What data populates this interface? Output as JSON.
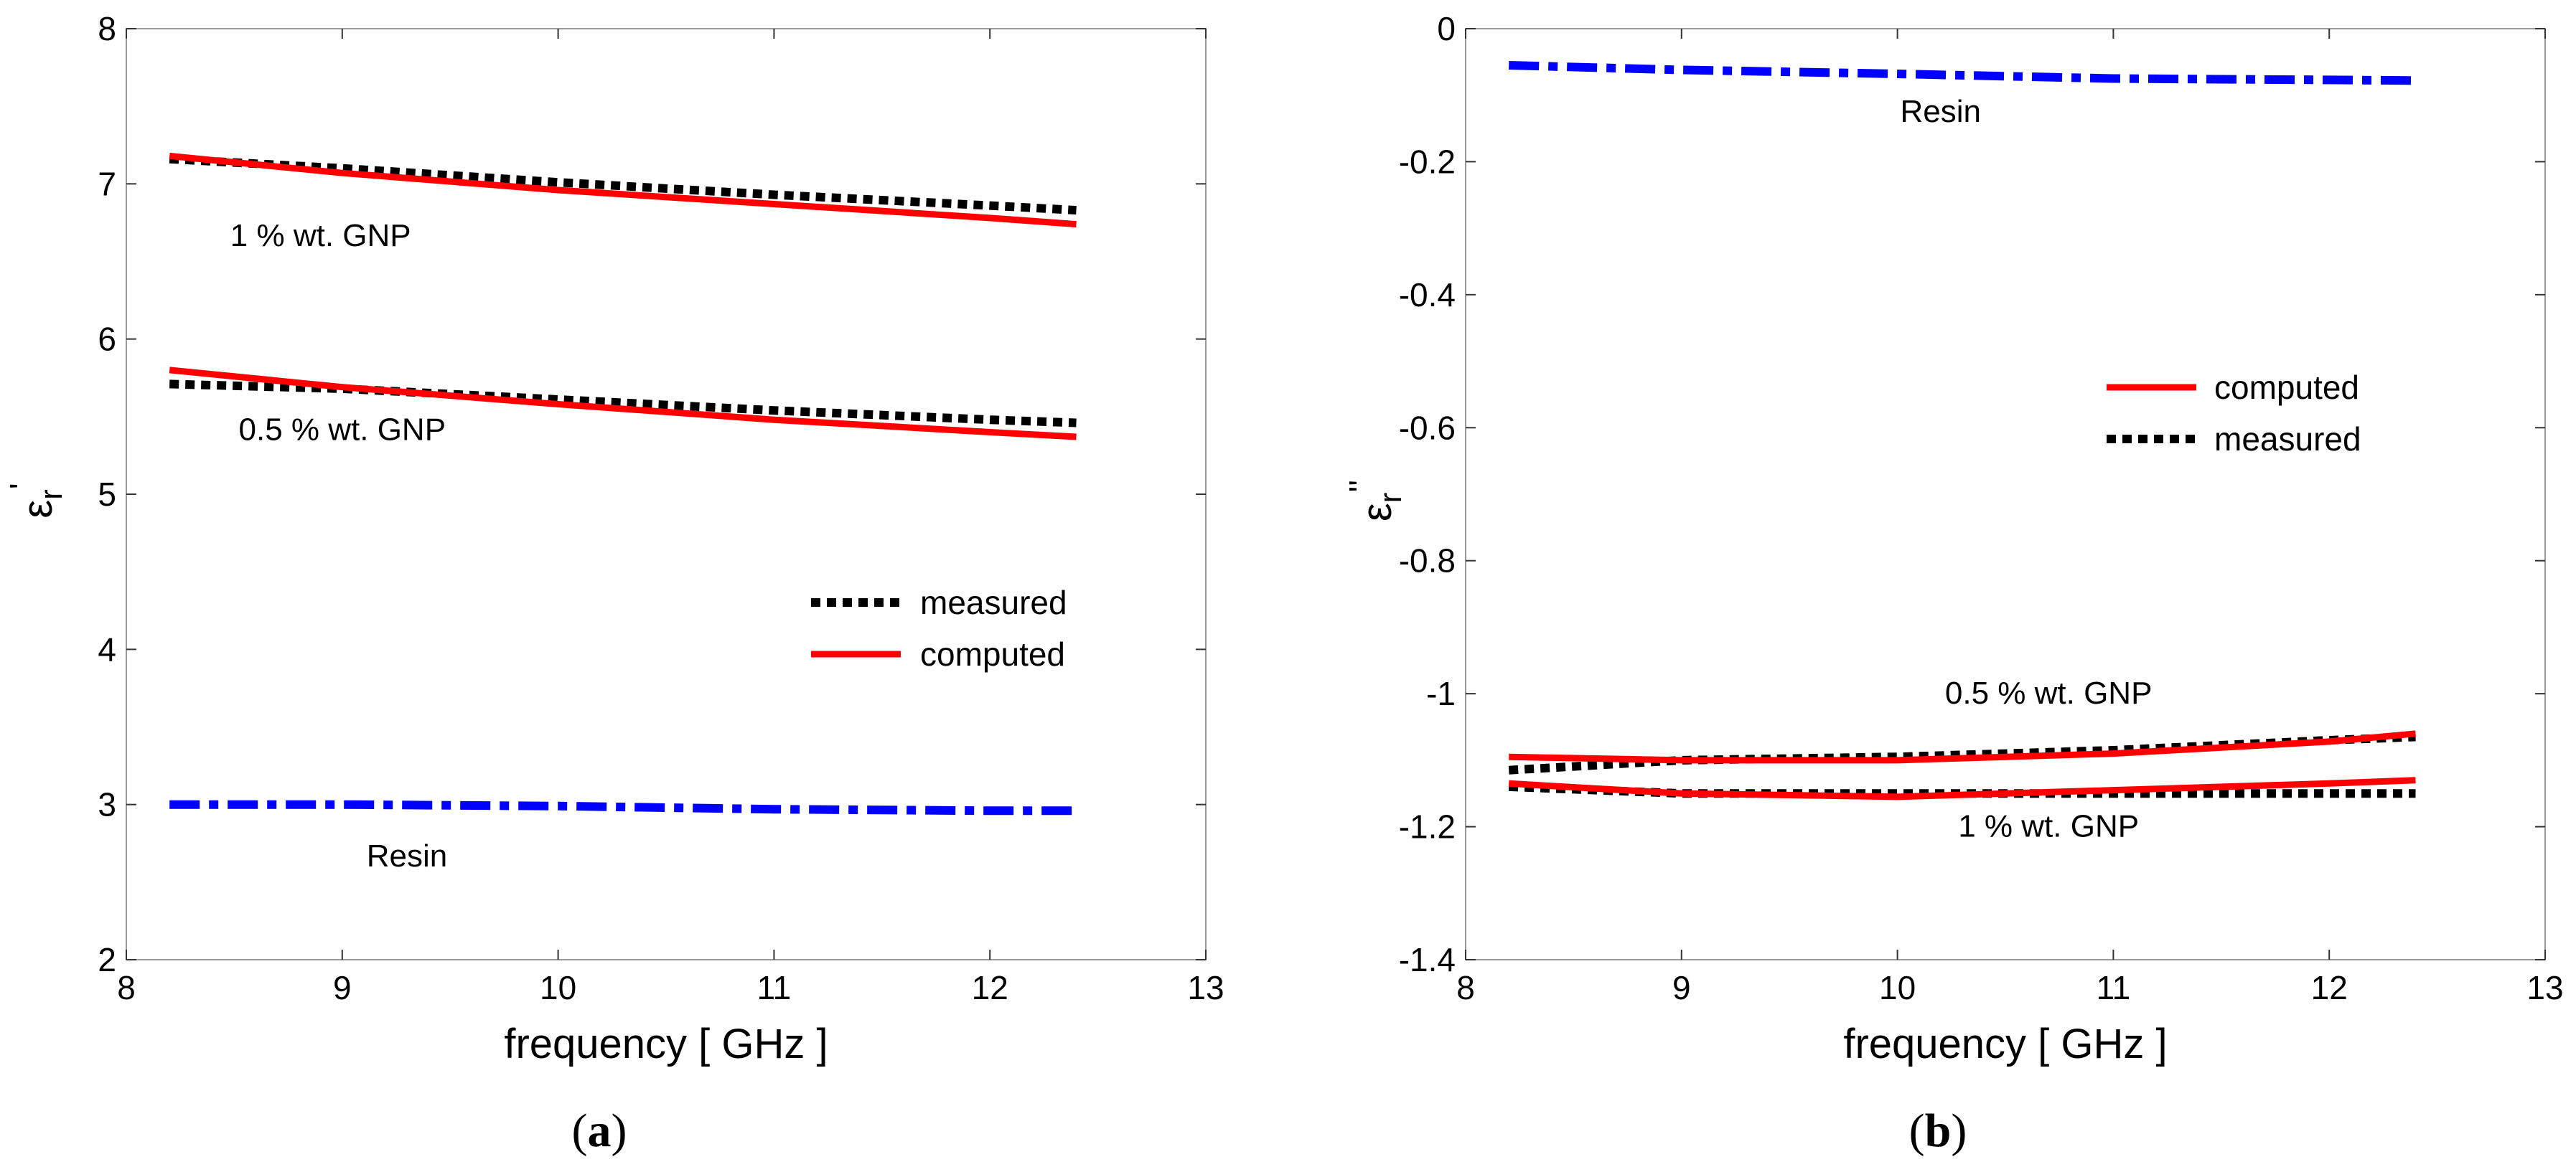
{
  "chart_data": [
    {
      "type": "line",
      "panel": "a",
      "caption": "a",
      "xlabel": "frequency [ GHz ]",
      "ylabel": "ε",
      "ylabel_sub": "r",
      "ylabel_sup": "'",
      "xlim": [
        8,
        13
      ],
      "ylim": [
        2,
        8
      ],
      "xticks": [
        8,
        9,
        10,
        11,
        12,
        13
      ],
      "yticks": [
        2,
        3,
        4,
        5,
        6,
        7,
        8
      ],
      "legend": {
        "placement": "right-middle",
        "entries": [
          "measured",
          "computed"
        ]
      },
      "series": [
        {
          "name": "1 % wt. GNP measured",
          "style": "measured",
          "x": [
            8.2,
            9,
            10,
            11,
            12,
            12.4
          ],
          "y": [
            7.16,
            7.1,
            7.01,
            6.93,
            6.86,
            6.83
          ]
        },
        {
          "name": "1 % wt. GNP computed",
          "style": "computed",
          "x": [
            8.2,
            9,
            10,
            11,
            12,
            12.4
          ],
          "y": [
            7.18,
            7.07,
            6.96,
            6.87,
            6.78,
            6.74
          ]
        },
        {
          "name": "0.5 % wt. GNP measured",
          "style": "measured",
          "x": [
            8.2,
            9,
            10,
            11,
            12,
            12.4
          ],
          "y": [
            5.71,
            5.68,
            5.61,
            5.54,
            5.48,
            5.46
          ]
        },
        {
          "name": "0.5 % wt. GNP computed",
          "style": "computed",
          "x": [
            8.2,
            9,
            10,
            11,
            12,
            12.4
          ],
          "y": [
            5.8,
            5.69,
            5.58,
            5.48,
            5.4,
            5.37
          ]
        },
        {
          "name": "Resin",
          "style": "resin",
          "x": [
            8.2,
            9,
            10,
            11,
            12,
            12.4
          ],
          "y": [
            3.0,
            3.0,
            2.99,
            2.97,
            2.96,
            2.96
          ]
        }
      ],
      "annotations": [
        {
          "text": "1 % wt. GNP",
          "x": 8.9,
          "y": 6.6
        },
        {
          "text": "0.5 % wt. GNP",
          "x": 9.0,
          "y": 5.35
        },
        {
          "text": "Resin",
          "x": 9.3,
          "y": 2.6
        }
      ]
    },
    {
      "type": "line",
      "panel": "b",
      "caption": "b",
      "xlabel": "frequency [ GHz ]",
      "ylabel": "ε",
      "ylabel_sub": "r",
      "ylabel_sup": "''",
      "xlim": [
        8,
        13
      ],
      "ylim": [
        -1.4,
        0
      ],
      "xticks": [
        8,
        9,
        10,
        11,
        12,
        13
      ],
      "yticks": [
        -1.4,
        -1.2,
        -1,
        -0.8,
        -0.6,
        -0.4,
        -0.2,
        0
      ],
      "yticklabels": [
        "-1.4",
        "-1.2",
        "-1",
        "-0.8",
        "-0.6",
        "-0.4",
        "-0.2",
        "0"
      ],
      "legend": {
        "placement": "right-middle",
        "entries": [
          "computed",
          "measured"
        ]
      },
      "series": [
        {
          "name": "Resin",
          "style": "resin",
          "x": [
            8.2,
            9,
            10,
            11,
            12,
            12.4
          ],
          "y": [
            -0.055,
            -0.062,
            -0.068,
            -0.075,
            -0.077,
            -0.078
          ]
        },
        {
          "name": "0.5 % wt. GNP measured",
          "style": "measured",
          "x": [
            8.2,
            9,
            10,
            11,
            12,
            12.4
          ],
          "y": [
            -1.115,
            -1.1,
            -1.095,
            -1.085,
            -1.07,
            -1.065
          ]
        },
        {
          "name": "0.5 % wt. GNP computed",
          "style": "computed",
          "x": [
            8.2,
            9,
            10,
            11,
            12,
            12.4
          ],
          "y": [
            -1.095,
            -1.1,
            -1.1,
            -1.09,
            -1.072,
            -1.06
          ]
        },
        {
          "name": "1 % wt. GNP measured",
          "style": "measured",
          "x": [
            8.2,
            9,
            10,
            11,
            12,
            12.4
          ],
          "y": [
            -1.14,
            -1.15,
            -1.15,
            -1.15,
            -1.15,
            -1.15
          ]
        },
        {
          "name": "1 % wt. GNP computed",
          "style": "computed",
          "x": [
            8.2,
            9,
            10,
            11,
            12,
            12.4
          ],
          "y": [
            -1.135,
            -1.15,
            -1.155,
            -1.145,
            -1.135,
            -1.13
          ]
        }
      ],
      "annotations": [
        {
          "text": "Resin",
          "x": 10.2,
          "y": -0.14
        },
        {
          "text": "0.5 % wt. GNP",
          "x": 10.7,
          "y": -1.015
        },
        {
          "text": "1 % wt. GNP",
          "x": 10.7,
          "y": -1.215
        }
      ]
    }
  ],
  "styles": {
    "measured_color": "#000000",
    "computed_color": "#ff0000",
    "resin_color": "#0000ff",
    "axis_color": "#000000"
  }
}
